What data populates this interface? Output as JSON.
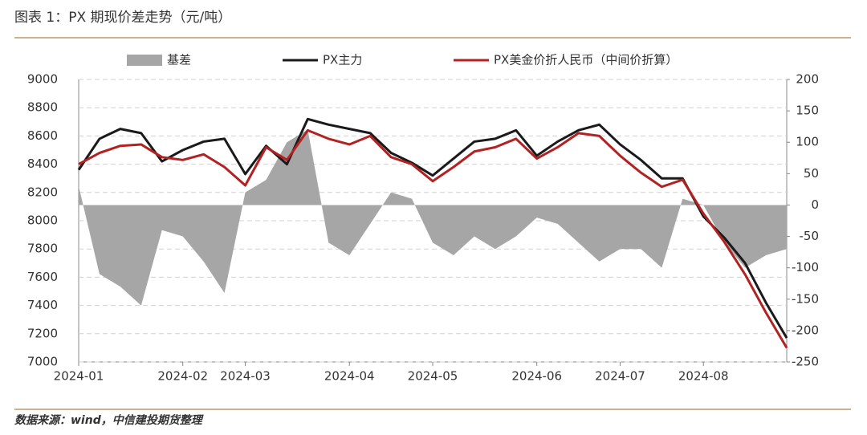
{
  "title": "图表 1：PX 期现价差走势（元/吨）",
  "source": "数据来源：wind，中信建投期货整理",
  "chart_data": {
    "type": "line",
    "categories": [
      "2024-01",
      null,
      null,
      null,
      null,
      "2024-02",
      null,
      null,
      "2024-03",
      null,
      null,
      null,
      null,
      "2024-04",
      null,
      null,
      null,
      "2024-05",
      null,
      null,
      null,
      null,
      "2024-06",
      null,
      null,
      null,
      "2024-07",
      null,
      null,
      null,
      "2024-08",
      null,
      null,
      null,
      null
    ],
    "series": [
      {
        "name": "基差",
        "color": "#a6a6a6",
        "axis": "y2",
        "kind": "area",
        "values": [
          30,
          -110,
          -130,
          -160,
          -40,
          -50,
          -90,
          -140,
          20,
          40,
          100,
          120,
          -60,
          -80,
          -30,
          20,
          10,
          -60,
          -80,
          -50,
          -70,
          -50,
          -20,
          -30,
          -60,
          -90,
          -70,
          -70,
          -100,
          10,
          0,
          -60,
          -100,
          -80,
          -70
        ]
      },
      {
        "name": "PX主力",
        "color": "#1a1a1a",
        "values": [
          8360,
          8580,
          8650,
          8620,
          8420,
          8500,
          8560,
          8580,
          8330,
          8530,
          8400,
          8720,
          8680,
          8650,
          8620,
          8480,
          8410,
          8320,
          8440,
          8560,
          8580,
          8640,
          8460,
          8560,
          8640,
          8680,
          8540,
          8430,
          8300,
          8300,
          8030,
          7880,
          7700,
          7420,
          7170
        ]
      },
      {
        "name": "PX美金价折人民币（中间价折算）",
        "color": "#b22222",
        "values": [
          8400,
          8480,
          8530,
          8540,
          8450,
          8430,
          8470,
          8380,
          8250,
          8520,
          8430,
          8640,
          8580,
          8540,
          8600,
          8450,
          8400,
          8280,
          8380,
          8490,
          8520,
          8580,
          8440,
          8520,
          8620,
          8600,
          8460,
          8340,
          8240,
          8290,
          8050,
          7850,
          7620,
          7350,
          7100
        ]
      }
    ],
    "ylim": [
      7000,
      9000
    ],
    "yticks": [
      7000,
      7200,
      7400,
      7600,
      7800,
      8000,
      8200,
      8400,
      8600,
      8800,
      9000
    ],
    "y2lim": [
      -250,
      200
    ],
    "y2ticks": [
      -250,
      -200,
      -150,
      -100,
      -50,
      0,
      50,
      100,
      150,
      200
    ],
    "grid": true
  }
}
